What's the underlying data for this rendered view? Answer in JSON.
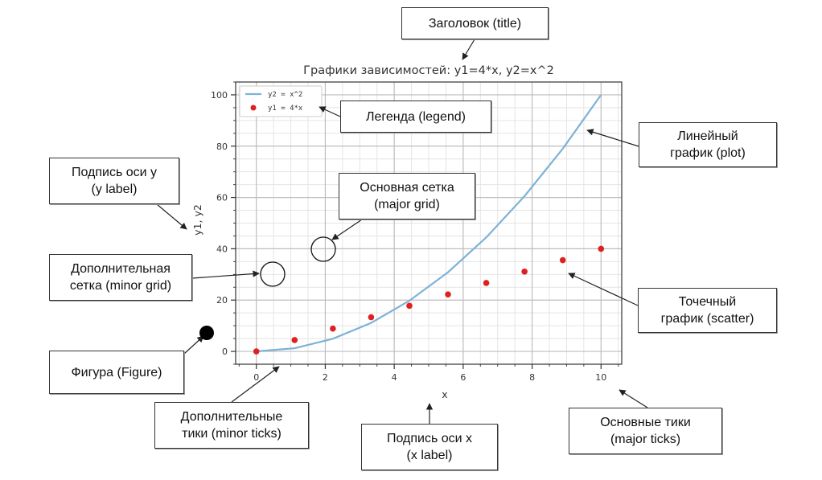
{
  "chart_data": {
    "type": "line",
    "title": "Графики зависимостей: y1=4*x, y2=x^2",
    "xlabel": "x",
    "ylabel": "y1, y2",
    "xlim": [
      -0.6,
      10.6
    ],
    "ylim": [
      -5,
      105
    ],
    "xticks": [
      0,
      2,
      4,
      6,
      8,
      10
    ],
    "yticks": [
      0,
      20,
      40,
      60,
      80,
      100
    ],
    "grid": {
      "major": true,
      "minor": true
    },
    "legend": "top-left",
    "series": [
      {
        "name": "y2 = x^2",
        "kind": "line",
        "color": "#7fb2d6",
        "x": [
          0,
          1.11,
          2.22,
          3.33,
          4.44,
          5.56,
          6.67,
          7.78,
          8.89,
          10
        ],
        "y": [
          0,
          1.23,
          4.94,
          11.11,
          19.75,
          30.86,
          44.44,
          60.49,
          79.01,
          100
        ]
      },
      {
        "name": "y1 = 4*x",
        "kind": "scatter",
        "color": "#e02020",
        "x": [
          0,
          1.11,
          2.22,
          3.33,
          4.44,
          5.56,
          6.67,
          7.78,
          8.89,
          10
        ],
        "y": [
          0,
          4.44,
          8.89,
          13.33,
          17.78,
          22.22,
          26.67,
          31.11,
          35.56,
          40
        ]
      }
    ]
  },
  "annotations": {
    "title": [
      "Заголовок (title)"
    ],
    "legend": [
      "Легенда (legend)"
    ],
    "plot": [
      "Линейный",
      "график (plot)"
    ],
    "ylabel": [
      "Подпись оси y",
      "(y label)"
    ],
    "major_grid": [
      "Основная сетка",
      "(major grid)"
    ],
    "minor_grid": [
      "Дополнительная",
      "сетка (minor grid)"
    ],
    "scatter": [
      "Точечный",
      "график (scatter)"
    ],
    "figure": [
      "Фигура (Figure)"
    ],
    "minor_ticks": [
      "Дополнительные",
      "тики (minor ticks)"
    ],
    "xlabel": [
      "Подпись оси x",
      "(x label)"
    ],
    "major_ticks": [
      "Основные тики",
      "(major ticks)"
    ]
  }
}
